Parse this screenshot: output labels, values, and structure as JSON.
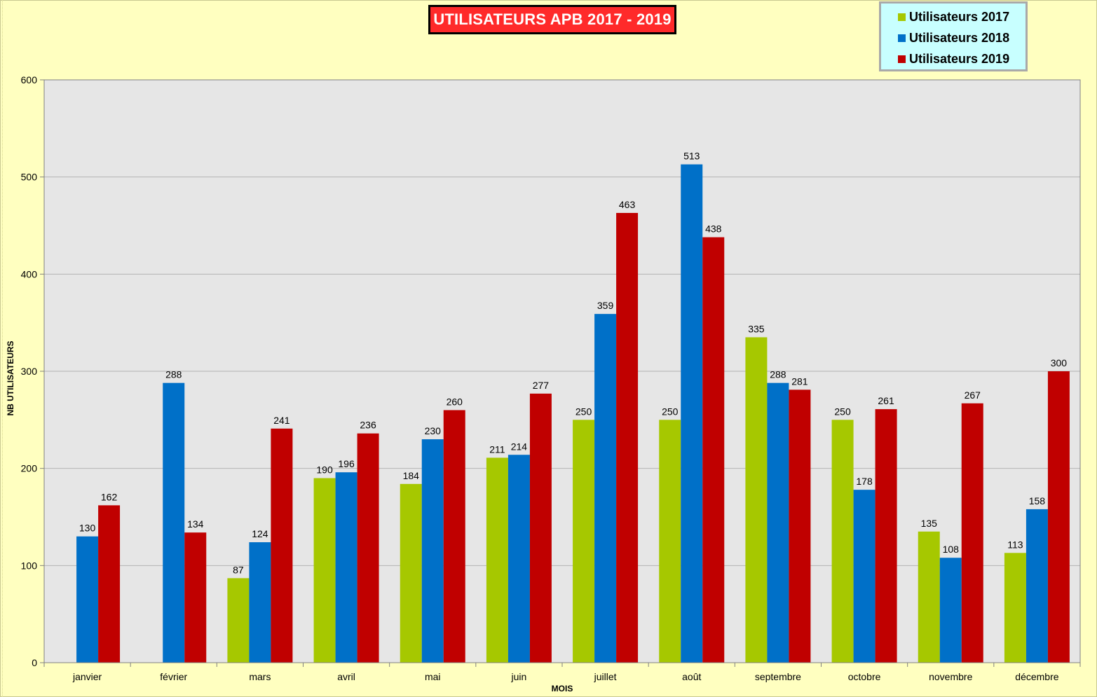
{
  "colors": {
    "background": "#ffffc0",
    "plot_background": "#e6e6e6",
    "series_2017": "#a6c800",
    "series_2018": "#0070c8",
    "series_2019": "#c00000",
    "title_background": "#ff2a2a",
    "legend_background": "#c8ffff"
  },
  "chart_data": {
    "type": "bar",
    "title": "UTILISATEURS APB 2017 - 2019",
    "xlabel": "MOIS",
    "ylabel": "NB UTILISATEURS",
    "ylim": [
      0,
      600
    ],
    "yticks": [
      "0",
      "100",
      "200",
      "300",
      "400",
      "500",
      "600"
    ],
    "grid": true,
    "legend_position": "top-right",
    "categories": [
      "janvier",
      "février",
      "mars",
      "avril",
      "mai",
      "juin",
      "juillet",
      "août",
      "septembre",
      "octobre",
      "novembre",
      "décembre"
    ],
    "series": [
      {
        "name": "Utilisateurs 2017",
        "color": "#a6c800",
        "values": [
          null,
          null,
          87,
          190,
          184,
          211,
          250,
          250,
          335,
          250,
          135,
          113
        ]
      },
      {
        "name": "Utilisateurs 2018",
        "color": "#0070c8",
        "values": [
          130,
          288,
          124,
          196,
          230,
          214,
          359,
          513,
          288,
          178,
          108,
          158
        ]
      },
      {
        "name": "Utilisateurs 2019",
        "color": "#c00000",
        "values": [
          162,
          134,
          241,
          236,
          260,
          277,
          463,
          438,
          281,
          261,
          267,
          300
        ]
      }
    ]
  }
}
